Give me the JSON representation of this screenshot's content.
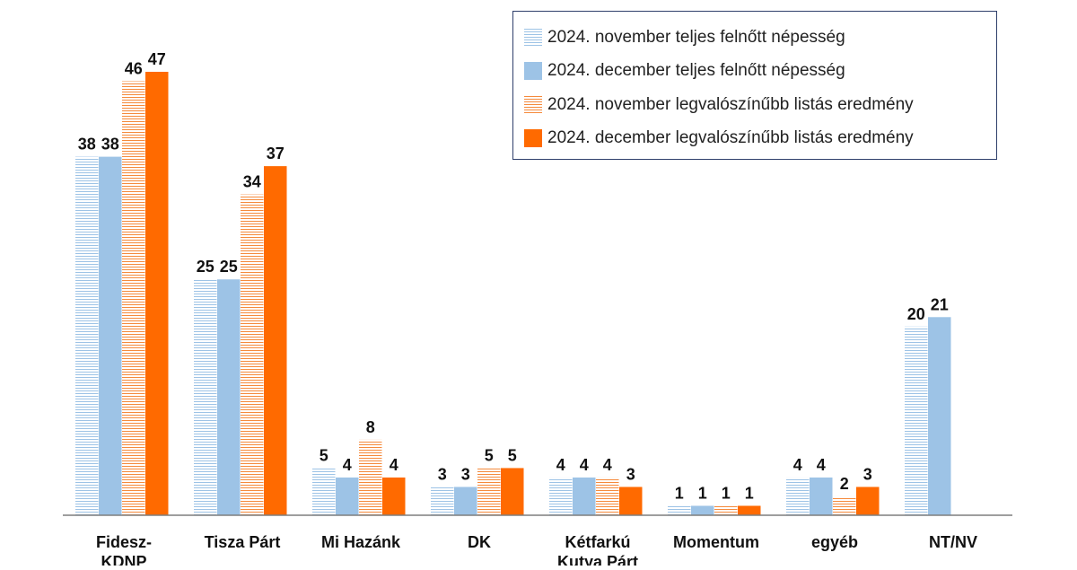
{
  "chart_data": {
    "type": "bar",
    "title": "",
    "xlabel": "",
    "ylabel": "",
    "ylim": [
      0,
      50
    ],
    "grid": false,
    "legend_position": "top-right",
    "categories": [
      "Fidesz-KDNP",
      "Tisza Párt",
      "Mi Hazánk",
      "DK",
      "Kétfarkú Kutya Párt",
      "Momentum",
      "egyéb",
      "NT/NV"
    ],
    "category_lines": [
      [
        "Fidesz-",
        "KDNP"
      ],
      [
        "Tisza Párt"
      ],
      [
        "Mi Hazánk"
      ],
      [
        "DK"
      ],
      [
        "Kétfarkú",
        "Kutya Párt"
      ],
      [
        "Momentum"
      ],
      [
        "egyéb"
      ],
      [
        "NT/NV"
      ]
    ],
    "series": [
      {
        "name": "2024. november teljes felnőtt népesség",
        "values": [
          38,
          25,
          5,
          3,
          4,
          1,
          4,
          20
        ],
        "color": "#9dc3e6",
        "pattern": "striped"
      },
      {
        "name": "2024. december teljes felnőtt népesség",
        "values": [
          38,
          25,
          4,
          3,
          4,
          1,
          4,
          21
        ],
        "color": "#9dc3e6",
        "pattern": "solid"
      },
      {
        "name": "2024. november legvalószínűbb listás eredmény",
        "values": [
          46,
          34,
          8,
          5,
          4,
          1,
          2,
          null
        ],
        "color": "#f58a3c",
        "pattern": "striped"
      },
      {
        "name": "2024. december legvalószínűbb listás eredmény",
        "values": [
          47,
          37,
          4,
          5,
          3,
          1,
          3,
          null
        ],
        "color": "#ff6a00",
        "pattern": "solid"
      }
    ]
  }
}
